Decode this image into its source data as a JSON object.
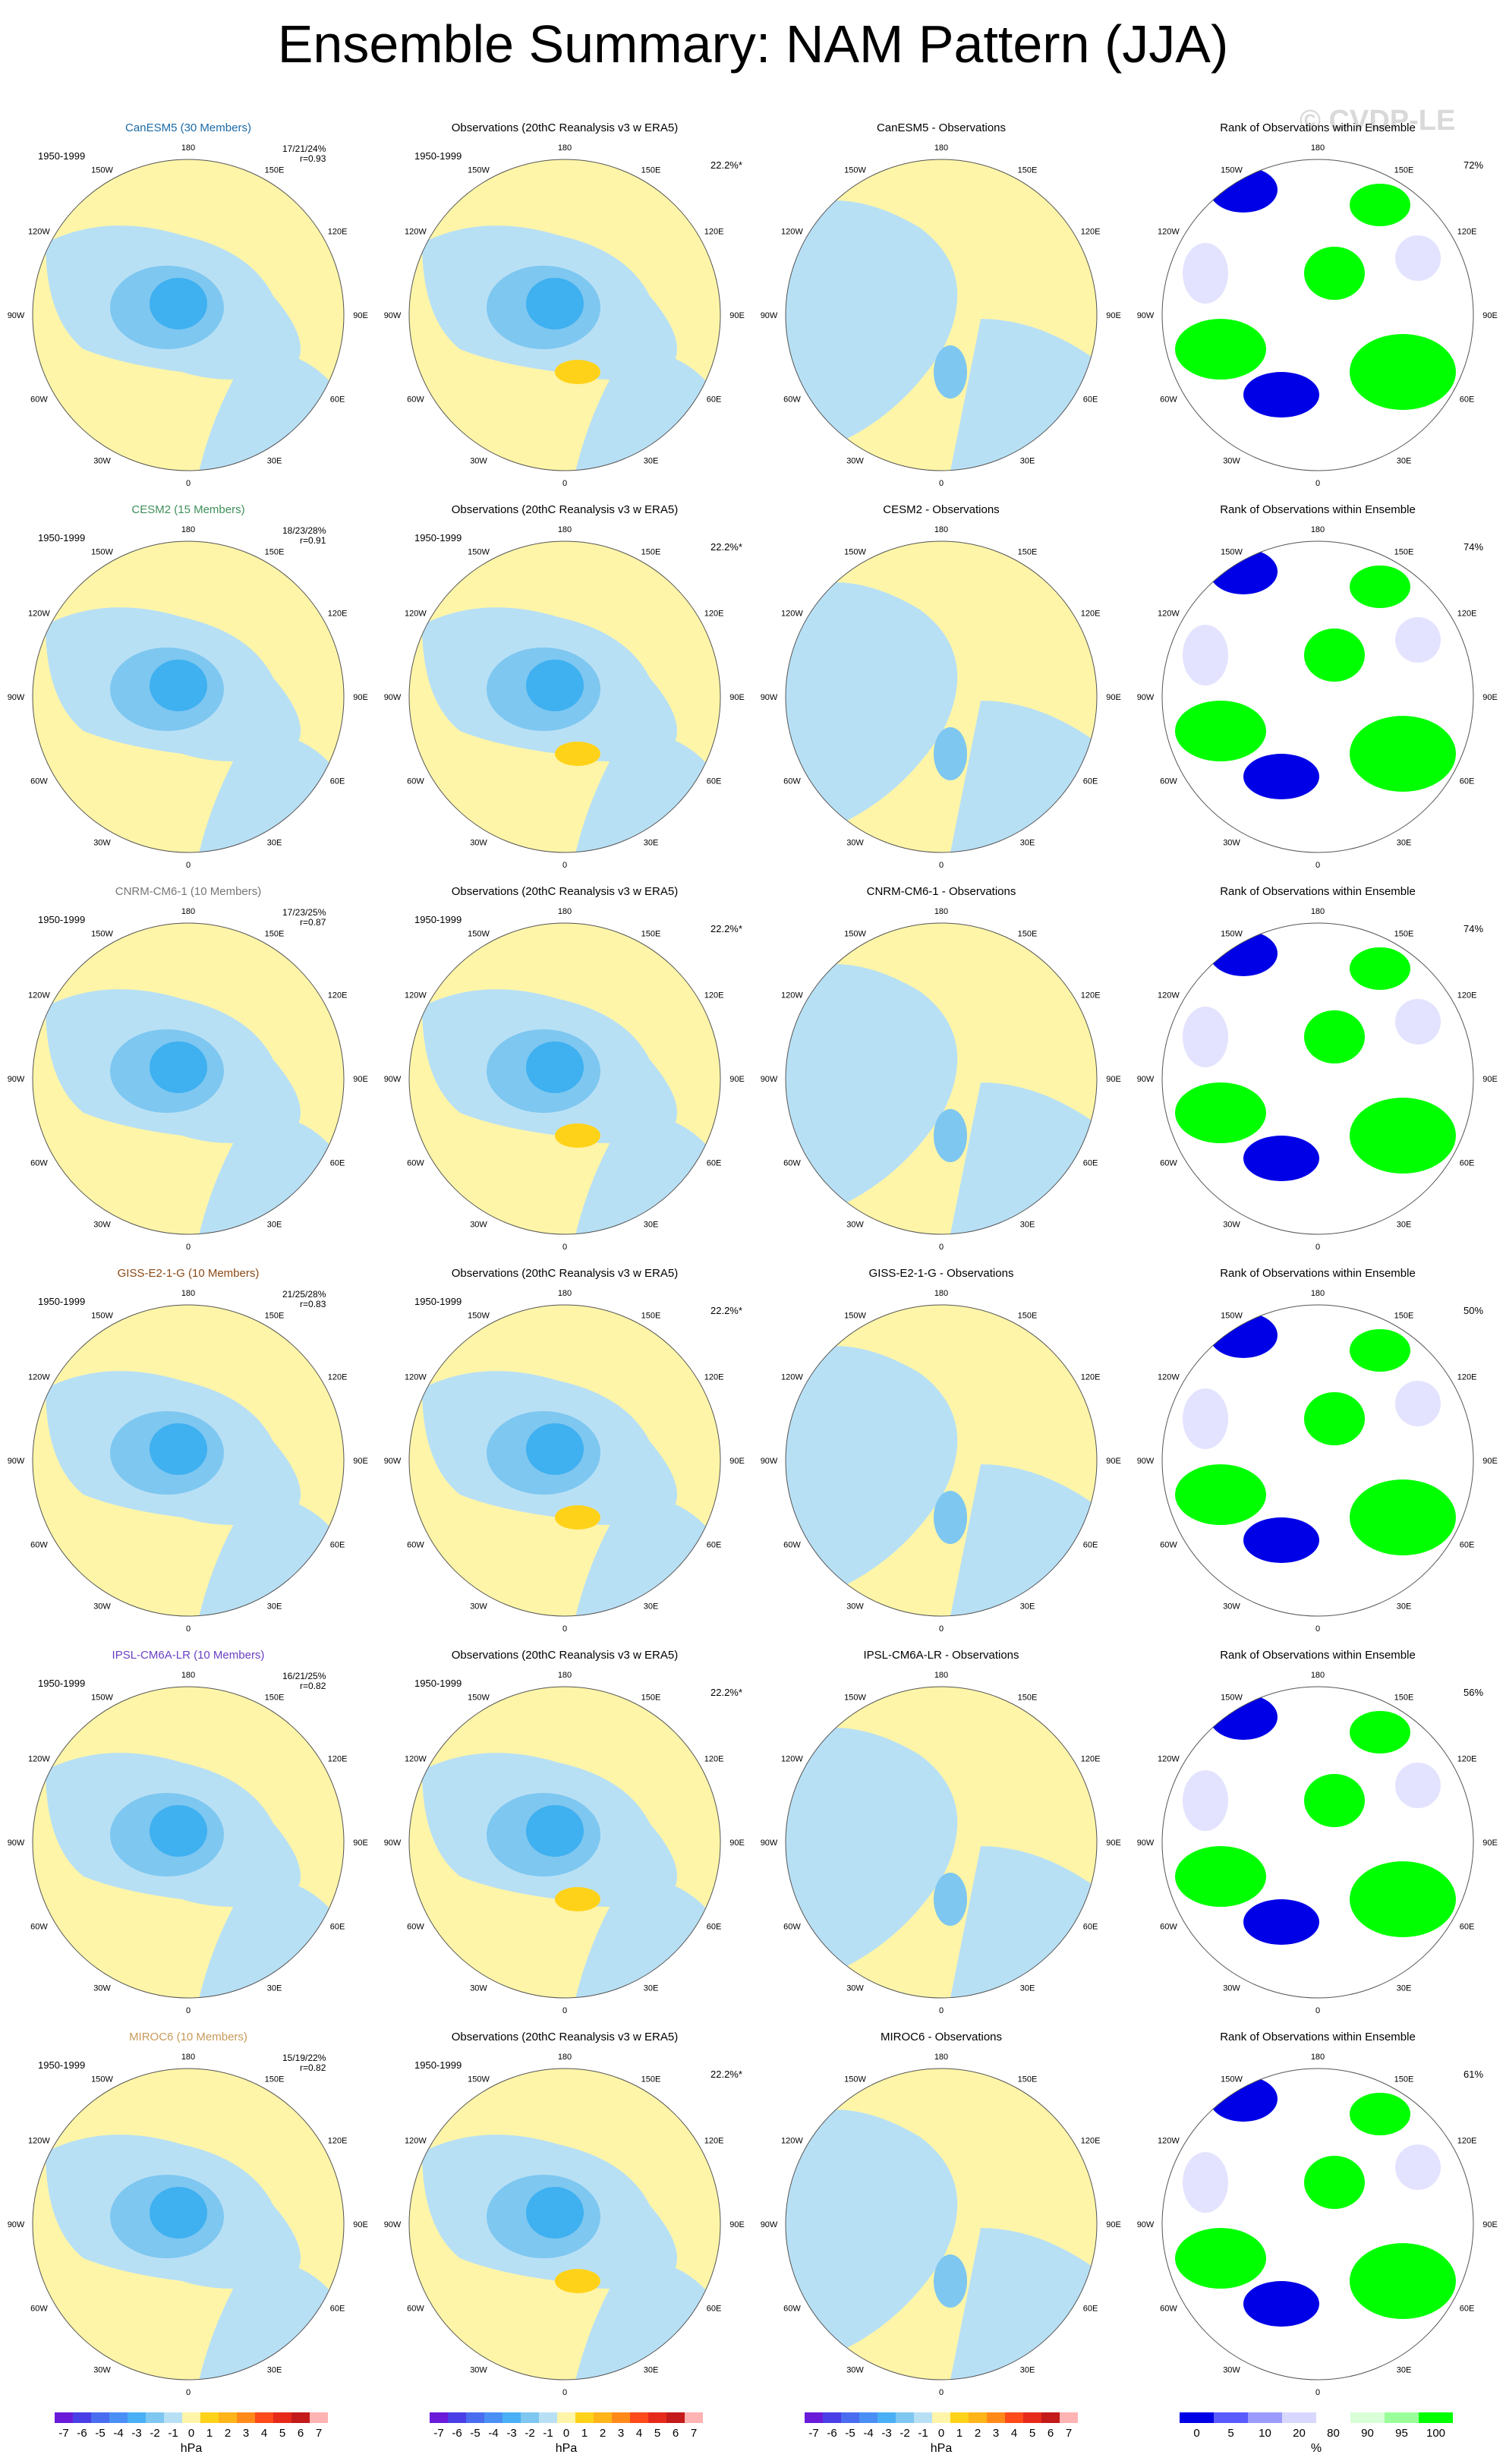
{
  "title": "Ensemble Summary: NAM Pattern (JJA)",
  "watermark": "© CVDP-LE",
  "period": "1950-1999",
  "obs_pct": "22.2%*",
  "lon_labels": [
    "180",
    "150E",
    "120E",
    "90E",
    "60E",
    "30E",
    "0",
    "30W",
    "60W",
    "90W",
    "120W",
    "150W"
  ],
  "colors": {
    "pos1": "#fff5a8",
    "pos2": "#ffd21a",
    "neg1": "#b8e0f5",
    "neg2": "#7ec7f0",
    "neg3": "#3fb0f0",
    "rank_blue": "#0000e6",
    "rank_green": "#00ff00",
    "rank_light": "#e3e3ff"
  },
  "rows": [
    {
      "model": "CanESM5 (30 Members)",
      "model_color": "#1a6aa8",
      "stats1": "17/21/24%",
      "stats2": "r=0.93",
      "diff_title": "CanESM5 - Observations",
      "rank_pct": "72%"
    },
    {
      "model": "CESM2 (15 Members)",
      "model_color": "#3f8f5a",
      "stats1": "18/23/28%",
      "stats2": "r=0.91",
      "diff_title": "CESM2 - Observations",
      "rank_pct": "74%"
    },
    {
      "model": "CNRM-CM6-1 (10 Members)",
      "model_color": "#777777",
      "stats1": "17/23/25%",
      "stats2": "r=0.87",
      "diff_title": "CNRM-CM6-1 - Observations",
      "rank_pct": "74%"
    },
    {
      "model": "GISS-E2-1-G (10 Members)",
      "model_color": "#8c4a16",
      "stats1": "21/25/28%",
      "stats2": "r=0.83",
      "diff_title": "GISS-E2-1-G - Observations",
      "rank_pct": "50%"
    },
    {
      "model": "IPSL-CM6A-LR (10 Members)",
      "model_color": "#6a3fc4",
      "stats1": "16/21/25%",
      "stats2": "r=0.82",
      "diff_title": "IPSL-CM6A-LR - Observations",
      "rank_pct": "56%"
    },
    {
      "model": "MIROC6 (10 Members)",
      "model_color": "#c79a5a",
      "stats1": "15/19/22%",
      "stats2": "r=0.82",
      "diff_title": "MIROC6 - Observations",
      "rank_pct": "61%"
    }
  ],
  "obs_title": "Observations (20thC Reanalysis v3 w ERA5)",
  "rank_title": "Rank of Observations within Ensemble",
  "colorbar_hpa": {
    "labels": [
      "-7",
      "-6",
      "-5",
      "-4",
      "-3",
      "-2",
      "-1",
      "0",
      "1",
      "2",
      "3",
      "4",
      "5",
      "6",
      "7"
    ],
    "colors": [
      "#6a1ad9",
      "#4a3fe6",
      "#4a6cf0",
      "#4a8ff5",
      "#4ab0f5",
      "#7ec7f0",
      "#b8e0f5",
      "#fff5a8",
      "#ffd21a",
      "#ffb41a",
      "#ff8a1a",
      "#ff4a1a",
      "#e62a1a",
      "#c41a1a",
      "#ffb3b3"
    ],
    "unit": "hPa"
  },
  "colorbar_rank": {
    "labels": [
      "0",
      "5",
      "10",
      "20",
      "80",
      "90",
      "95",
      "100"
    ],
    "colors": [
      "#0000e6",
      "#5a5aff",
      "#9a9aff",
      "#d8d8ff",
      "#ffffff",
      "#d8ffd8",
      "#9aff9a",
      "#00ff00"
    ],
    "unit": "%"
  }
}
